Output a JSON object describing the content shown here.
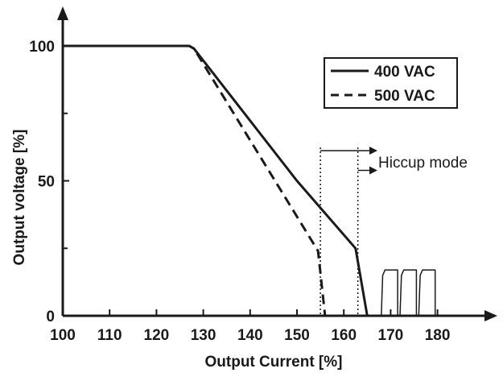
{
  "chart_data": {
    "type": "line",
    "xlabel": "Output Current [%]",
    "ylabel": "Output voltage [%]",
    "xlim": [
      100,
      190
    ],
    "ylim": [
      0,
      105
    ],
    "x_ticks": [
      "100",
      "110",
      "120",
      "130",
      "140",
      "150",
      "160",
      "170",
      "180"
    ],
    "y_ticks": [
      "0",
      "50",
      "100"
    ],
    "grid": false,
    "legend": {
      "placement": "top-right",
      "entries": [
        "400 VAC",
        "500 VAC"
      ]
    },
    "series": [
      {
        "name": "400 VAC",
        "style": "solid",
        "x": [
          100,
          127,
          128,
          150,
          162.5,
          165
        ],
        "y": [
          100,
          100,
          99,
          50,
          25,
          0
        ]
      },
      {
        "name": "500 VAC",
        "style": "dashed",
        "x": [
          100,
          127,
          128,
          154.5,
          156
        ],
        "y": [
          100,
          100,
          99,
          24,
          0
        ]
      },
      {
        "name": "hiccup",
        "style": "solid",
        "x": [
          168,
          168.3,
          168.8,
          171.5,
          171.5,
          172,
          172.3,
          172.8,
          175.5,
          175.5,
          176,
          176.3,
          176.8,
          179.5,
          179.5
        ],
        "y": [
          0,
          15,
          17,
          17,
          0,
          0,
          15,
          17,
          17,
          0,
          0,
          15,
          17,
          17,
          0
        ]
      }
    ],
    "annotations": [
      {
        "text": "Hiccup mode",
        "x_start": [
          155,
          163
        ],
        "y": [
          60,
          53
        ]
      }
    ]
  }
}
